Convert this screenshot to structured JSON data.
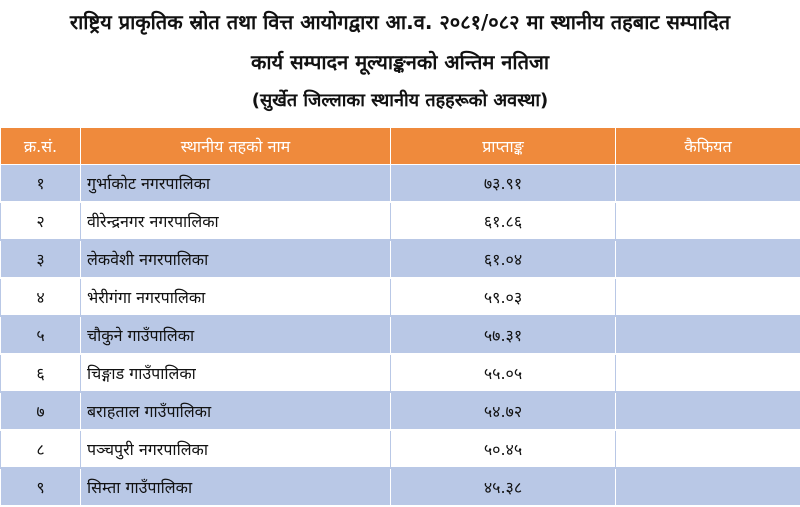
{
  "header": {
    "lines": [
      "राष्ट्रिय प्राकृतिक स्रोत तथा वित्त आयोगद्वारा आ.व. २०८१/०८२ मा स्थानीय तहबाट सम्पादित",
      "कार्य सम्पादन मूल्याङ्कनको अन्तिम नतिजा",
      "(सुर्खेत जिल्लाका स्थानीय तहहरूको अवस्था)"
    ]
  },
  "table": {
    "columns": [
      "क्र.सं.",
      "स्थानीय तहको नाम",
      "प्राप्ताङ्क",
      "कैफियत"
    ],
    "rows": [
      [
        "१",
        "गुर्भाकोट नगरपालिका",
        "७३.९१"
      ],
      [
        "२",
        "वीरेन्द्रनगर नगरपालिका",
        "६१.८६"
      ],
      [
        "३",
        "लेकवेशी नगरपालिका",
        "६१.०४"
      ],
      [
        "४",
        "भेरीगंगा नगरपालिका",
        "५९.०३"
      ],
      [
        "५",
        "चौकुने गाउँपालिका",
        "५७.३१"
      ],
      [
        "६",
        "चिङ्गाड गाउँपालिका",
        "५५.०५"
      ],
      [
        "७",
        "बराहताल गाउँपालिका",
        "५४.७२"
      ],
      [
        "८",
        "पञ्चपुरी नगरपालिका",
        "५०.४५"
      ],
      [
        "९",
        "सिम्ता गाउँपालिका",
        "४५.३८"
      ]
    ]
  }
}
